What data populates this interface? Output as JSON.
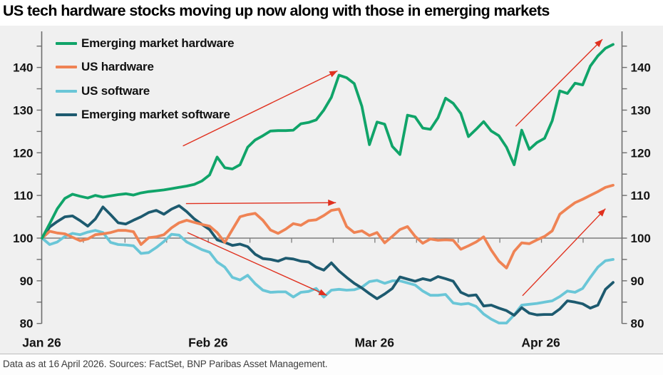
{
  "title": "US tech hardware stocks moving up now along with those in emerging markets",
  "footer": {
    "text": "Data as at 16 April 2026. Sources: FactSet, BNP Paribas Asset Management."
  },
  "chart_data": {
    "type": "line",
    "title": "US tech hardware stocks moving up now along with those in emerging markets",
    "index_base": 100,
    "grid": "baseline-only",
    "legend_position": "top-left",
    "x_axis": {
      "tick_labels": [
        "Jan 26",
        "Feb 26",
        "Mar 26",
        "Apr 26"
      ],
      "tick_label_days": [
        0,
        21.85,
        43.7,
        65.55
      ],
      "minor_tick_interval_days": 5.47,
      "total_days": 75
    },
    "y_axis": {
      "range": [
        80,
        148.5
      ],
      "major_ticks": [
        80,
        90,
        100,
        110,
        120,
        130,
        140
      ],
      "minor_tick_step": 5,
      "baseline": 100,
      "sides": "both"
    },
    "series": [
      {
        "name": "Emerging market hardware",
        "color": "#10a469",
        "values": [
          100,
          103.4,
          106.9,
          109.3,
          110.3,
          109.8,
          109.4,
          110,
          109.6,
          109.9,
          110.2,
          110.4,
          110.1,
          110.6,
          110.9,
          111.1,
          111.3,
          111.6,
          111.9,
          112.2,
          112.6,
          113.4,
          114.8,
          119,
          116.5,
          116.2,
          117.2,
          121.3,
          123,
          124,
          125.1,
          125.2,
          125.2,
          125.3,
          126.8,
          127.1,
          127.7,
          130,
          133,
          138.2,
          137.6,
          136.2,
          130.9,
          121.9,
          127.2,
          126.7,
          121.5,
          119.6,
          128.8,
          128.4,
          125.8,
          125.5,
          128.2,
          132.8,
          131.6,
          129.2,
          123.8,
          125.5,
          127.3,
          125.1,
          124,
          121.3,
          117.2,
          125.3,
          120.8,
          122.4,
          123.4,
          127.5,
          134.5,
          133.9,
          136.3,
          135.9,
          140.3,
          142.7,
          144.5,
          145.4
        ]
      },
      {
        "name": "US hardware",
        "color": "#ef8354",
        "values": [
          100,
          101.6,
          101.2,
          101,
          100.2,
          99.4,
          99.8,
          100.8,
          101,
          101.3,
          101.8,
          101.8,
          101.5,
          98.5,
          100.1,
          100.3,
          100.8,
          102.4,
          103.6,
          104.2,
          103.7,
          103.2,
          102.8,
          101.3,
          99,
          102,
          105,
          105.5,
          105.8,
          104.2,
          101.9,
          101.1,
          102.1,
          103.4,
          103,
          104.1,
          104.3,
          105.3,
          106.5,
          106.8,
          102.7,
          101.3,
          101.7,
          100.6,
          101.3,
          98.9,
          100.4,
          102,
          102.7,
          100.4,
          98.8,
          99.8,
          99.5,
          99.6,
          99.5,
          97.4,
          98.2,
          99.1,
          100.3,
          97.2,
          94.6,
          93,
          96.9,
          98.9,
          98.7,
          99.6,
          100.4,
          101.7,
          105.6,
          107,
          108.3,
          109.1,
          110,
          110.9,
          111.9,
          112.4
        ]
      },
      {
        "name": "US software",
        "color": "#6ac6d7",
        "values": [
          100,
          98.5,
          99.1,
          100.4,
          101.1,
          100.8,
          101.4,
          101.8,
          101.3,
          99,
          98.5,
          98.4,
          98.2,
          96.4,
          96.6,
          97.8,
          99.2,
          100.9,
          100.7,
          99.1,
          98.2,
          97.3,
          96.7,
          94.4,
          93.2,
          90.8,
          90.2,
          91.3,
          89.3,
          87.8,
          87.3,
          87.4,
          87.4,
          86.2,
          87.3,
          87.5,
          88.2,
          86.2,
          87.8,
          88,
          87.8,
          87.9,
          88.5,
          89.8,
          90.1,
          89.4,
          90,
          90,
          89.5,
          89,
          87.6,
          86.6,
          86.6,
          86.8,
          84.8,
          84.5,
          84.7,
          84,
          82.2,
          81,
          80.1,
          80.1,
          82,
          84.3,
          84.5,
          84.7,
          85,
          85.3,
          86.3,
          87.6,
          87.3,
          88.2,
          90.8,
          93.2,
          94.7,
          95
        ]
      },
      {
        "name": "Emerging market software",
        "color": "#1d5a6f",
        "values": [
          100,
          102.6,
          103.9,
          105,
          105.2,
          104.1,
          102.8,
          104.5,
          107.3,
          105.5,
          103.6,
          103.3,
          104.2,
          105,
          106,
          106.5,
          105.6,
          106.8,
          107.6,
          106.2,
          104.5,
          103.2,
          102,
          99.6,
          99,
          98.3,
          98.6,
          98,
          96.2,
          95.2,
          95,
          94.6,
          95.3,
          95.1,
          94.6,
          94.4,
          93.2,
          92.5,
          94.2,
          92.3,
          90.8,
          89.4,
          88.3,
          87,
          85.8,
          86.9,
          88.2,
          90.9,
          90.4,
          89.9,
          90.5,
          90.1,
          91,
          90.5,
          89.9,
          87.3,
          86.5,
          86.7,
          84.1,
          84.3,
          83.6,
          83,
          81.9,
          83.7,
          82.4,
          82,
          82.1,
          82.1,
          83.4,
          85.3,
          85,
          84.6,
          83.6,
          84.3,
          88,
          89.6
        ]
      }
    ],
    "annotation_color": "#e0301e",
    "annotations": [
      {
        "kind": "arrow",
        "from": [
          18.5,
          121.6
        ],
        "to": [
          38.8,
          139.2
        ]
      },
      {
        "kind": "arrow",
        "from": [
          18.9,
          108.1
        ],
        "to": [
          38.6,
          108.3
        ]
      },
      {
        "kind": "arrow",
        "from": [
          19.1,
          101.3
        ],
        "to": [
          37.4,
          86.6
        ]
      },
      {
        "kind": "arrow",
        "from": [
          62.2,
          126.2
        ],
        "to": [
          73.6,
          146.6
        ]
      },
      {
        "kind": "arrow",
        "from": [
          63.1,
          86.5
        ],
        "to": [
          74.0,
          106.9
        ]
      }
    ]
  }
}
